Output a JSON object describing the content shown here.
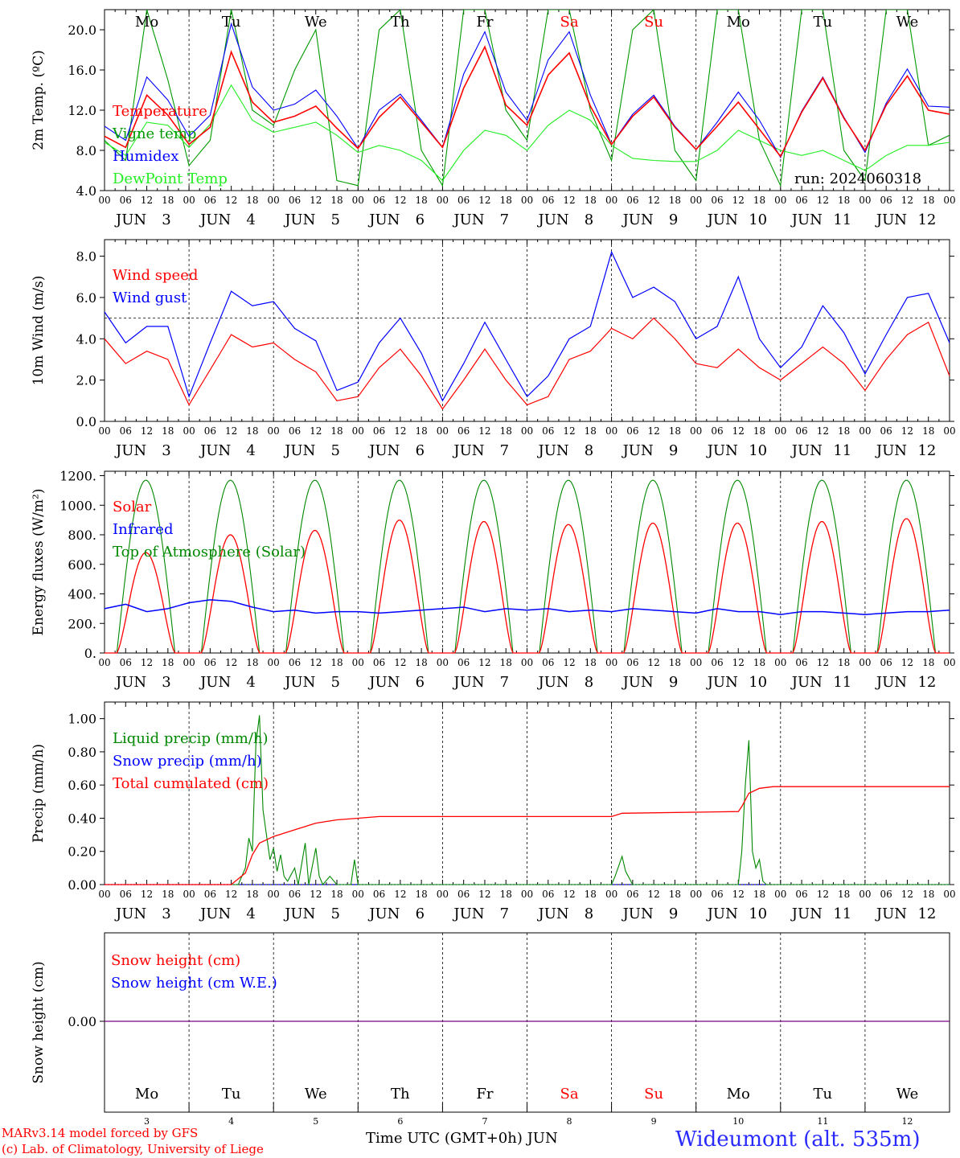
{
  "chart_data": [
    {
      "type": "line",
      "ylabel": "2m Temp. (ºC)",
      "yticks": [
        "4.0",
        "8.0",
        "12.0",
        "16.0",
        "20.0"
      ],
      "ylim": [
        4,
        22
      ],
      "legend": [
        "Temperature",
        "Vigne temp",
        "Humidex",
        "DewPoint Temp"
      ],
      "annotation": "run: 2024060318",
      "weekdays": [
        "Mo",
        "Tu",
        "We",
        "Th",
        "Fr",
        "Sa",
        "Su",
        "Mo",
        "Tu",
        "We"
      ],
      "x_hours": [
        0,
        6,
        12,
        18,
        24,
        30,
        36,
        42,
        48,
        54,
        60,
        66,
        72,
        78,
        84,
        90,
        96,
        102,
        108,
        114,
        120,
        126,
        132,
        138,
        144,
        150,
        156,
        162,
        168,
        174,
        180,
        186,
        192,
        198,
        204,
        210,
        216,
        222,
        228,
        234,
        240
      ],
      "series": [
        {
          "name": "Temperature",
          "color": "#ff0000",
          "values": [
            9.4,
            8.3,
            13.5,
            11.5,
            8.6,
            10.3,
            17.8,
            12.8,
            10.8,
            11.4,
            12.4,
            10.2,
            8.2,
            11.3,
            13.3,
            10.8,
            8.3,
            14.2,
            18.3,
            12.5,
            10.5,
            15.5,
            17.7,
            12.4,
            8.6,
            11.4,
            13.3,
            10.3,
            8.1,
            10.4,
            12.8,
            10.1,
            7.4,
            11.8,
            15.2,
            11.2,
            8.0,
            12.5,
            15.4,
            12.0,
            11.6
          ]
        },
        {
          "name": "Humidex",
          "color": "#0000ff",
          "values": [
            10.4,
            9.0,
            15.3,
            13.0,
            9.4,
            11.5,
            20.6,
            14.3,
            12.0,
            12.6,
            14.0,
            11.4,
            8.2,
            12.0,
            13.6,
            11.0,
            8.3,
            15.6,
            19.8,
            13.8,
            11.0,
            17.0,
            19.8,
            13.5,
            8.6,
            11.6,
            13.5,
            10.4,
            8.1,
            10.8,
            13.8,
            11.0,
            7.3,
            11.9,
            15.3,
            11.3,
            7.8,
            12.7,
            16.1,
            12.4,
            12.3
          ]
        },
        {
          "name": "Vigne temp",
          "color": "#009a00",
          "values": [
            9.0,
            7.0,
            22.0,
            15.0,
            6.5,
            9.0,
            22.0,
            12.0,
            10.5,
            16.0,
            20.0,
            5.0,
            4.5,
            20.0,
            22.0,
            8.0,
            4.5,
            22.0,
            22.0,
            12.0,
            9.0,
            22.0,
            22.0,
            12.0,
            7.0,
            20.0,
            22.0,
            8.0,
            5.0,
            22.0,
            22.0,
            9.0,
            4.5,
            22.0,
            22.0,
            8.0,
            5.0,
            22.0,
            22.0,
            8.5,
            9.5
          ]
        },
        {
          "name": "DewPoint Temp",
          "color": "#22ee22",
          "values": [
            8.8,
            7.5,
            10.8,
            10.5,
            8.3,
            10.6,
            14.5,
            11.0,
            9.8,
            10.3,
            10.8,
            9.5,
            7.8,
            8.5,
            8.0,
            7.0,
            5.0,
            8.0,
            10.0,
            9.5,
            8.0,
            10.5,
            12.0,
            11.0,
            8.5,
            7.2,
            7.0,
            6.9,
            6.9,
            8.0,
            10.0,
            9.0,
            8.0,
            7.5,
            8.0,
            7.0,
            6.0,
            7.5,
            8.5,
            8.5,
            8.8
          ]
        }
      ]
    },
    {
      "type": "line",
      "ylabel": "10m Wind (m/s)",
      "yticks": [
        "0.0",
        "2.0",
        "4.0",
        "6.0",
        "8.0"
      ],
      "ylim": [
        0,
        8.8
      ],
      "reference_line": 5.0,
      "legend": [
        "Wind speed",
        "Wind gust"
      ],
      "x_hours": [
        0,
        6,
        12,
        18,
        24,
        30,
        36,
        42,
        48,
        54,
        60,
        66,
        72,
        78,
        84,
        90,
        96,
        102,
        108,
        114,
        120,
        126,
        132,
        138,
        144,
        150,
        156,
        162,
        168,
        174,
        180,
        186,
        192,
        198,
        204,
        210,
        216,
        222,
        228,
        234,
        240
      ],
      "series": [
        {
          "name": "Wind speed",
          "color": "#ff0000",
          "values": [
            4.0,
            2.8,
            3.4,
            3.0,
            0.8,
            2.5,
            4.2,
            3.6,
            3.8,
            3.0,
            2.4,
            1.0,
            1.2,
            2.6,
            3.5,
            2.2,
            0.6,
            2.0,
            3.5,
            2.0,
            0.8,
            1.2,
            3.0,
            3.4,
            4.5,
            4.0,
            5.0,
            4.0,
            2.8,
            2.6,
            3.5,
            2.6,
            2.0,
            2.8,
            3.6,
            2.8,
            1.5,
            3.0,
            4.2,
            4.8,
            2.2
          ]
        },
        {
          "name": "Wind gust",
          "color": "#0000ff",
          "values": [
            5.3,
            3.8,
            4.6,
            4.6,
            1.2,
            3.8,
            6.3,
            5.6,
            5.8,
            4.5,
            3.9,
            1.5,
            1.9,
            3.8,
            5.0,
            3.3,
            1.0,
            2.8,
            4.8,
            3.0,
            1.2,
            2.2,
            4.0,
            4.6,
            8.2,
            6.0,
            6.5,
            5.8,
            4.0,
            4.6,
            7.0,
            4.0,
            2.6,
            3.6,
            5.6,
            4.3,
            2.3,
            4.2,
            6.0,
            6.2,
            3.8
          ]
        }
      ]
    },
    {
      "type": "line",
      "ylabel": "Energy fluxes (W/m²)",
      "yticks": [
        "0.",
        "200.",
        "400.",
        "600.",
        "800.",
        "1000.",
        "1200."
      ],
      "ylim": [
        0,
        1230
      ],
      "legend": [
        "Solar",
        "Infrared",
        "Top of Atmosphere (Solar)"
      ],
      "toa_peak": 1170,
      "solar_daily_peak": [
        680,
        800,
        830,
        900,
        890,
        870,
        880,
        880,
        890,
        910
      ],
      "infrared": [
        300,
        330,
        280,
        300,
        340,
        360,
        350,
        310,
        280,
        290,
        270,
        280,
        280,
        270,
        280,
        290,
        300,
        310,
        280,
        300,
        290,
        300,
        280,
        290,
        280,
        300,
        290,
        280,
        270,
        300,
        280,
        280,
        260,
        280,
        280,
        270,
        260,
        270,
        280,
        280,
        290
      ],
      "series": [
        {
          "name": "Solar",
          "color": "#ff0000"
        },
        {
          "name": "Infrared",
          "color": "#0000ff"
        },
        {
          "name": "Top of Atmosphere (Solar)",
          "color": "#008800"
        }
      ]
    },
    {
      "type": "line",
      "ylabel": "Precip (mm/h)",
      "yticks": [
        "0.00",
        "0.20",
        "0.40",
        "0.60",
        "0.80",
        "1.00"
      ],
      "ylim": [
        0,
        1.1
      ],
      "legend": [
        "Liquid precip (mm/h)",
        "Snow precip (mm/h)",
        "Total cumulated (cm)"
      ],
      "cumulated": [
        [
          0,
          0
        ],
        [
          36,
          0
        ],
        [
          40,
          0.07
        ],
        [
          42,
          0.18
        ],
        [
          44,
          0.25
        ],
        [
          48,
          0.29
        ],
        [
          54,
          0.33
        ],
        [
          60,
          0.37
        ],
        [
          66,
          0.39
        ],
        [
          72,
          0.4
        ],
        [
          78,
          0.41
        ],
        [
          144,
          0.41
        ],
        [
          147,
          0.43
        ],
        [
          180,
          0.44
        ],
        [
          181,
          0.47
        ],
        [
          183,
          0.55
        ],
        [
          186,
          0.58
        ],
        [
          190,
          0.59
        ],
        [
          240,
          0.59
        ]
      ],
      "liquid": [
        [
          0,
          0
        ],
        [
          38,
          0
        ],
        [
          40,
          0.1
        ],
        [
          41,
          0.28
        ],
        [
          42,
          0.2
        ],
        [
          43,
          0.85
        ],
        [
          44,
          1.02
        ],
        [
          45,
          0.45
        ],
        [
          46,
          0.3
        ],
        [
          47,
          0.15
        ],
        [
          48,
          0.22
        ],
        [
          49,
          0.08
        ],
        [
          50,
          0.18
        ],
        [
          51,
          0.05
        ],
        [
          52,
          0.02
        ],
        [
          54,
          0.1
        ],
        [
          55,
          0.0
        ],
        [
          57,
          0.25
        ],
        [
          58,
          0.0
        ],
        [
          60,
          0.22
        ],
        [
          61,
          0.05
        ],
        [
          62,
          0.0
        ],
        [
          64,
          0.05
        ],
        [
          66,
          0.0
        ],
        [
          70,
          0.0
        ],
        [
          71,
          0.15
        ],
        [
          72,
          0.0
        ],
        [
          144,
          0
        ],
        [
          145,
          0.05
        ],
        [
          147,
          0.17
        ],
        [
          148,
          0.08
        ],
        [
          150,
          0
        ],
        [
          180,
          0
        ],
        [
          181,
          0.2
        ],
        [
          182,
          0.6
        ],
        [
          183,
          0.87
        ],
        [
          184,
          0.2
        ],
        [
          185,
          0.1
        ],
        [
          186,
          0.15
        ],
        [
          187,
          0.02
        ],
        [
          188,
          0
        ],
        [
          240,
          0
        ]
      ],
      "series": [
        {
          "name": "Liquid precip (mm/h)",
          "color": "#008800"
        },
        {
          "name": "Snow precip (mm/h)",
          "color": "#0000ff"
        },
        {
          "name": "Total cumulated (cm)",
          "color": "#ff0000"
        }
      ]
    },
    {
      "type": "line",
      "ylabel": "Snow height (cm)",
      "yticks": [
        "0.00"
      ],
      "legend": [
        "Snow height (cm)",
        "Snow height (cm W.E.)"
      ],
      "values": [
        0,
        0
      ],
      "weekdays": [
        "Mo",
        "Tu",
        "We",
        "Th",
        "Fr",
        "Sa",
        "Su",
        "Mo",
        "Tu",
        "We"
      ],
      "day_numbers": [
        "3",
        "4",
        "5",
        "6",
        "7",
        "8",
        "9",
        "10",
        "11",
        "12"
      ],
      "series": [
        {
          "name": "Snow height (cm)",
          "color": "#ff0000"
        },
        {
          "name": "Snow height (cm W.E.)",
          "color": "#0000ff"
        }
      ]
    }
  ],
  "axis": {
    "hour_ticks": [
      "00",
      "06",
      "12",
      "18"
    ],
    "end_tick": "00",
    "month": "JUN",
    "days": [
      "3",
      "4",
      "5",
      "6",
      "7",
      "8",
      "9",
      "10",
      "11",
      "12"
    ],
    "weekend_color": "#ff0000",
    "weekday_color": "#000000",
    "weekend_days": [
      "Sa",
      "Su"
    ]
  },
  "footer": {
    "credit_line1": "MARv3.14 model forced by GFS",
    "credit_line2": "(c) Lab. of Climatology, University of Liege",
    "xtitle": "Time UTC (GMT+0h) JUN",
    "station": "Wideumont (alt. 535m)"
  }
}
